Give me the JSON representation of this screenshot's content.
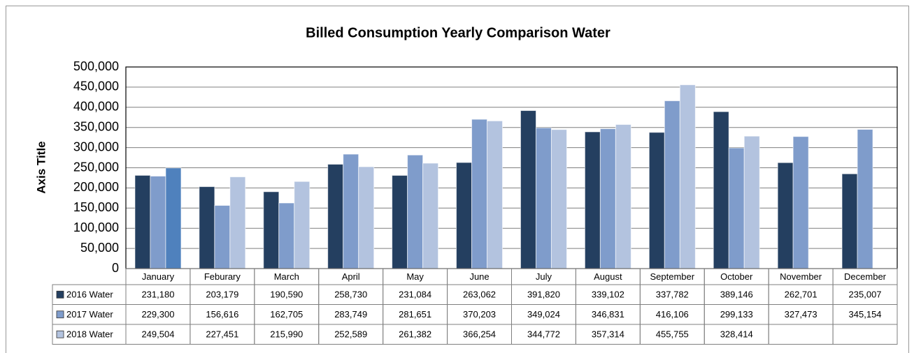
{
  "chart_data": {
    "type": "bar",
    "title": "Billed Consumption Yearly Comparison Water",
    "y_axis_title": "Axis Title",
    "categories": [
      "January",
      "Feburary",
      "March",
      "April",
      "May",
      "June",
      "July",
      "August",
      "September",
      "October",
      "November",
      "December"
    ],
    "series": [
      {
        "name": "2016 Water",
        "color": "#243f60",
        "values": [
          231180,
          203179,
          190590,
          258730,
          231084,
          263062,
          391820,
          339102,
          337782,
          389146,
          262701,
          235007
        ],
        "value_labels": [
          "231,180",
          "203,179",
          "190,590",
          "258,730",
          "231,084",
          "263,062",
          "391,820",
          "339,102",
          "337,782",
          "389,146",
          "262,701",
          "235,007"
        ]
      },
      {
        "name": "2017 Water",
        "color": "#7f9ccb",
        "values": [
          229300,
          156616,
          162705,
          283749,
          281651,
          370203,
          349024,
          346831,
          416106,
          299133,
          327473,
          345154
        ],
        "value_labels": [
          "229,300",
          "156,616",
          "162,705",
          "283,749",
          "281,651",
          "370,203",
          "349,024",
          "346,831",
          "416,106",
          "299,133",
          "327,473",
          "345,154"
        ]
      },
      {
        "name": "2018 Water",
        "color": "#b3c3df",
        "values": [
          249504,
          227451,
          215990,
          252589,
          261382,
          366254,
          344772,
          357314,
          455755,
          328414,
          null,
          null
        ],
        "value_labels": [
          "249,504",
          "227,451",
          "215,990",
          "252,589",
          "261,382",
          "366,254",
          "344,772",
          "357,314",
          "455,755",
          "328,414",
          null,
          null
        ],
        "point_colors": [
          {
            "index": 0,
            "color": "#4f81bd"
          }
        ]
      }
    ],
    "ylim": [
      0,
      500000
    ],
    "yticks": [
      0,
      {
        "value": 50000,
        "label": "50,000"
      },
      {
        "value": 100000,
        "label": "100,000"
      },
      {
        "value": 150000,
        "label": "150,000"
      },
      {
        "value": 200000,
        "label": "200,000"
      },
      {
        "value": 250000,
        "label": "250,000"
      },
      {
        "value": 300000,
        "label": "300,000"
      },
      {
        "value": 350000,
        "label": "350,000"
      },
      {
        "value": 400000,
        "label": "400,000"
      },
      {
        "value": 450000,
        "label": "450,000"
      },
      {
        "value": 500000,
        "label": "500,000"
      }
    ],
    "grid": true
  }
}
